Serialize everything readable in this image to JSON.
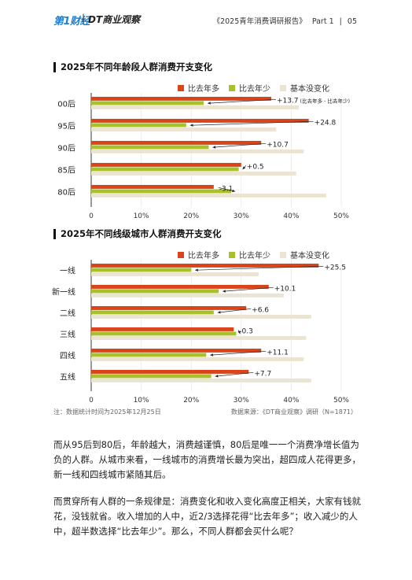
{
  "header": {
    "logo_primary": "第1财经",
    "logo_secondary": "DT商业观察",
    "report_title": "《2025青年消费调研报告》",
    "part": "Part 1",
    "page": "05"
  },
  "colors": {
    "more": "#d9441b",
    "less": "#a8c12a",
    "same": "#ebe4d2"
  },
  "chart_data": [
    {
      "type": "bar",
      "orientation": "horizontal",
      "title": "2025年不同年龄段人群消费开支变化",
      "legend": [
        "比去年多",
        "比去年少",
        "基本没变化"
      ],
      "categories": [
        "00后",
        "95后",
        "90后",
        "85后",
        "80后"
      ],
      "series": [
        {
          "name": "比去年多",
          "values": [
            36,
            43.5,
            34,
            30,
            24.5
          ]
        },
        {
          "name": "比去年少",
          "values": [
            22.5,
            19,
            23.5,
            29.5,
            28
          ]
        },
        {
          "name": "基本没变化",
          "values": [
            41.5,
            37,
            42.5,
            41,
            47
          ]
        }
      ],
      "annotations": [
        "+13.7",
        "+24.8",
        "+10.7",
        "+0.5",
        "-3.1"
      ],
      "annotation_note": "(比去年多 - 比去年少)",
      "xticks": [
        "0",
        "10%",
        "20%",
        "30%",
        "40%",
        "50%"
      ],
      "xlim": [
        0,
        50
      ]
    },
    {
      "type": "bar",
      "orientation": "horizontal",
      "title": "2025年不同线级城市人群消费开支变化",
      "legend": [
        "比去年多",
        "比去年少",
        "基本没变化"
      ],
      "categories": [
        "一线",
        "新一线",
        "二线",
        "三线",
        "四线",
        "五线"
      ],
      "series": [
        {
          "name": "比去年多",
          "values": [
            45.5,
            35.5,
            31,
            28.5,
            34,
            31.5
          ]
        },
        {
          "name": "比去年少",
          "values": [
            20,
            25.5,
            24.5,
            29,
            23,
            24
          ]
        },
        {
          "name": "基本没变化",
          "values": [
            33.5,
            38.5,
            44,
            43,
            42.5,
            44
          ]
        }
      ],
      "annotations": [
        "+25.5",
        "+10.1",
        "+6.6",
        "-0.3",
        "+11.1",
        "+7.7"
      ],
      "xticks": [
        "0",
        "10%",
        "20%",
        "30%",
        "40%",
        "50%"
      ],
      "xlim": [
        0,
        50
      ]
    }
  ],
  "footnote": {
    "left": "注：数据统计时间为2025年12月25日",
    "right": "数据来源：《DT商业观察》调研（N=1871）"
  },
  "paragraphs": [
    "而从95后到80后，年龄越大，消费越谨慎，80后是唯一一个消费净增长值为负的人群。从城市来看，一线城市的消费增长最为突出，超四成人花得更多，新一线和四线城市紧随其后。",
    "而贯穿所有人群的一条规律是：消费变化和收入变化高度正相关，大家有钱就花，没钱就省。收入增加的人中，近2/3选择花得“比去年多”；收入减少的人中，超半数选择“比去年少”。那么，不同人群都会买什么呢？"
  ]
}
